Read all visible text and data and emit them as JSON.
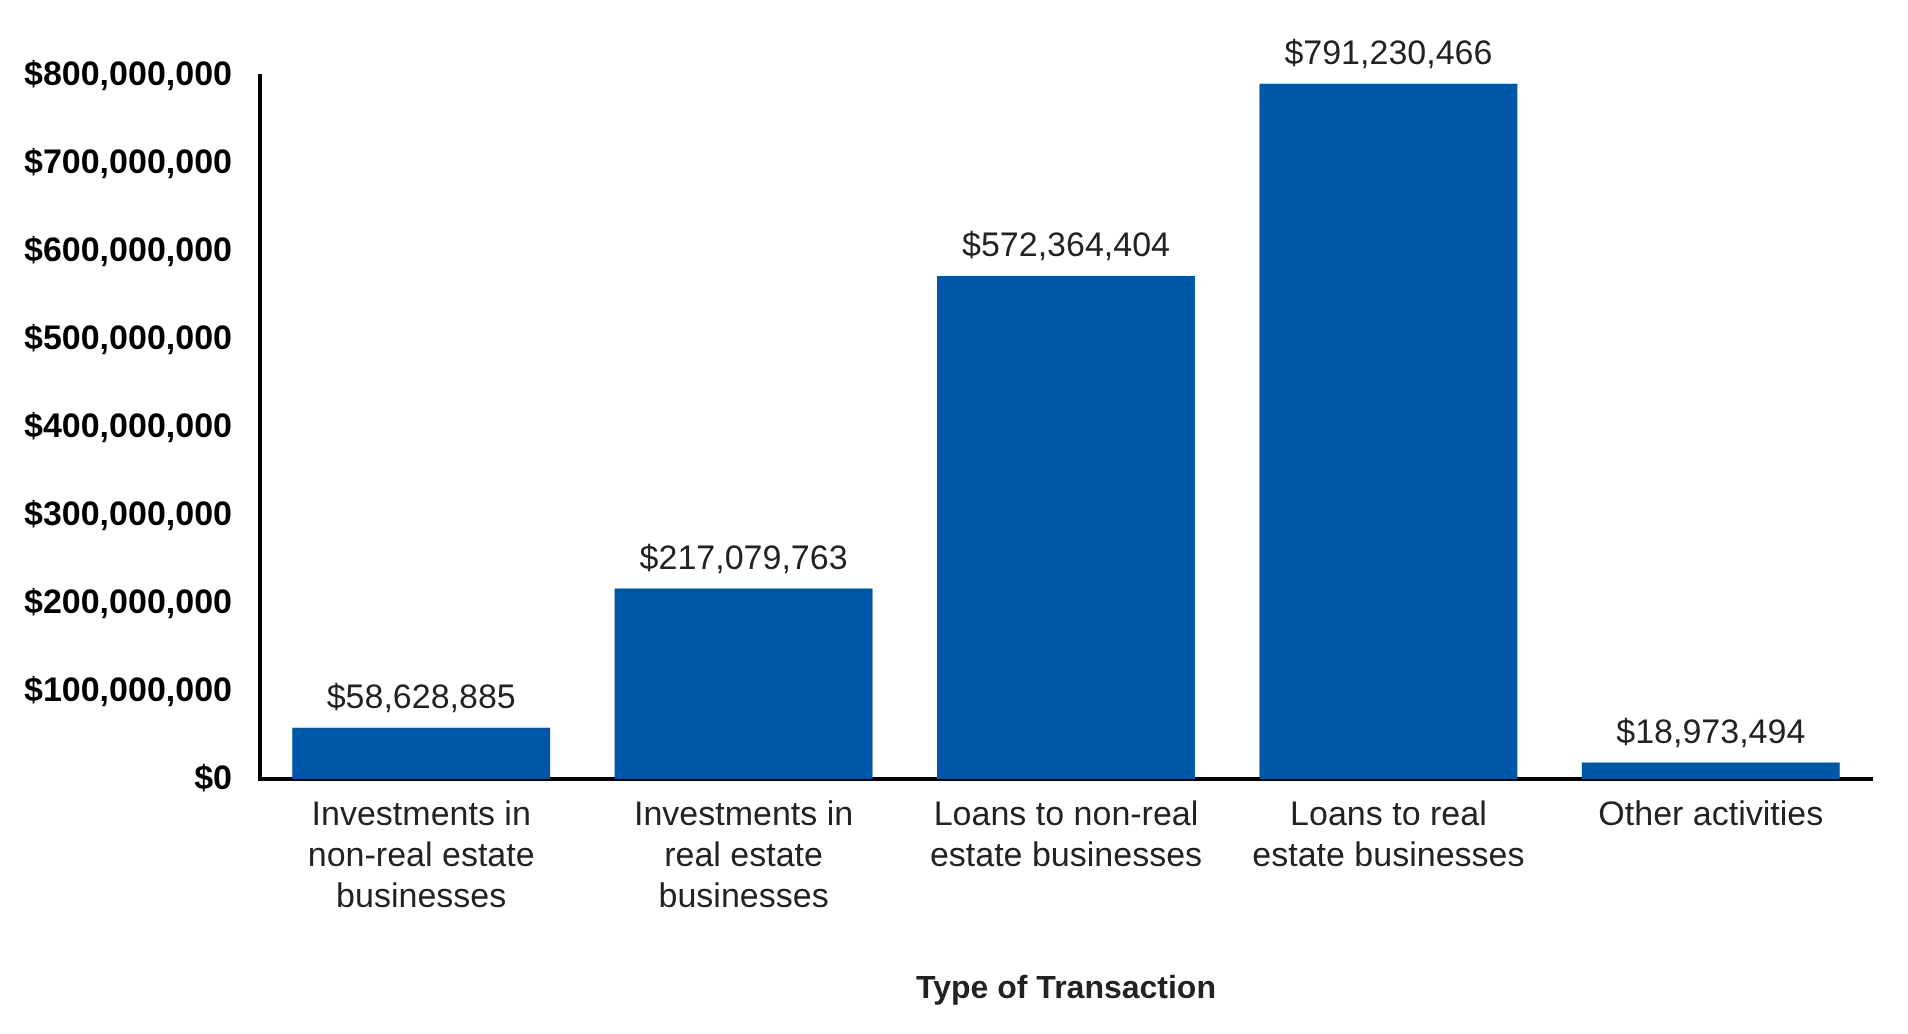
{
  "chart_data": {
    "type": "bar",
    "xlabel": "Type of Transaction",
    "categories": [
      "Investments in non-real estate businesses",
      "Investments in real estate businesses",
      "Loans to non-real estate businesses",
      "Loans to real estate businesses",
      "Other activities"
    ],
    "values": [
      58628885,
      217079763,
      572364404,
      791230466,
      18973494
    ],
    "value_labels": [
      "$58,628,885",
      "$217,079,763",
      "$572,364,404",
      "$791,230,466",
      "$18,973,494"
    ],
    "color": "#0057a8",
    "ylim": [
      0,
      800000000
    ],
    "yticks": [
      {
        "value": 0,
        "label": "$0"
      },
      {
        "value": 100000000,
        "label": "$100,000,000"
      },
      {
        "value": 200000000,
        "label": "$200,000,000"
      },
      {
        "value": 300000000,
        "label": "$300,000,000"
      },
      {
        "value": 400000000,
        "label": "$400,000,000"
      },
      {
        "value": 500000000,
        "label": "$500,000,000"
      },
      {
        "value": 600000000,
        "label": "$600,000,000"
      },
      {
        "value": 700000000,
        "label": "$700,000,000"
      },
      {
        "value": 800000000,
        "label": "$800,000,000"
      }
    ],
    "grid": false,
    "legend": false
  }
}
